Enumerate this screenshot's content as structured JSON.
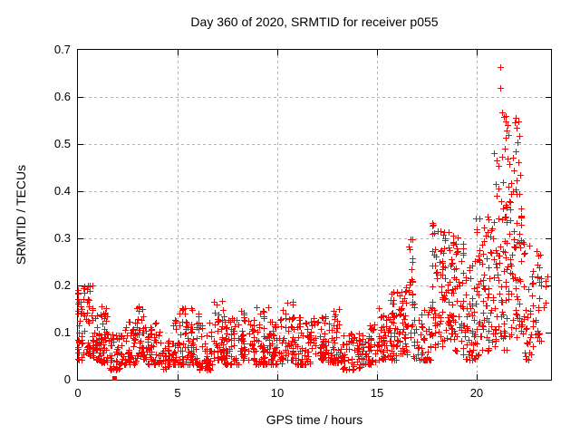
{
  "figure": {
    "title": "Day 360 of 2020, SRMTID for receiver p055"
  },
  "colors": {
    "marker": "#ff0000",
    "grid": "#b4b4b4",
    "frame": "#000000",
    "background": "#ffffff",
    "text": "#000000"
  },
  "chart_data": {
    "type": "scatter",
    "title": "Day 360 of 2020, SRMTID for receiver p055",
    "xlabel": "GPS time / hours",
    "ylabel": "SRMTID / TECUs",
    "xlim": [
      0,
      23.73
    ],
    "ylim": [
      0,
      0.7
    ],
    "x_ticks": [
      0,
      5,
      10,
      15,
      20
    ],
    "x_tick_labels": [
      "0",
      "5",
      "10",
      "15",
      "20"
    ],
    "y_ticks": [
      0,
      0.1,
      0.2,
      0.3,
      0.4,
      0.5,
      0.6,
      0.7
    ],
    "y_tick_labels": [
      "0",
      "0.1",
      "0.2",
      "0.3",
      "0.4",
      "0.5",
      "0.6",
      "0.7"
    ],
    "grid": true,
    "legend": "none",
    "marker": {
      "symbol": "plus",
      "color": "#ff0000",
      "size": 7
    },
    "series_name": "SRMTID",
    "scatter_profile_format": "bins of [x_start_hr, x_end_hr, point_count, y_min_TECU, y_max_TECU, low_bias_exponent] estimated from the plotted point cloud",
    "scatter_profile": {
      "bins": [
        [
          0.0,
          0.3,
          32,
          0.04,
          0.19,
          1.6
        ],
        [
          0.3,
          0.8,
          55,
          0.05,
          0.2,
          1.7
        ],
        [
          0.8,
          1.15,
          35,
          0.04,
          0.135,
          1.8
        ],
        [
          1.15,
          1.6,
          45,
          0.035,
          0.155,
          1.8
        ],
        [
          1.6,
          2.2,
          45,
          0.02,
          0.095,
          1.6
        ],
        [
          2.2,
          3.0,
          55,
          0.03,
          0.125,
          1.8
        ],
        [
          3.0,
          3.5,
          40,
          0.04,
          0.155,
          1.8
        ],
        [
          3.5,
          4.2,
          50,
          0.03,
          0.12,
          1.8
        ],
        [
          4.2,
          4.65,
          30,
          0.02,
          0.095,
          1.6
        ],
        [
          4.65,
          5.4,
          55,
          0.03,
          0.15,
          2.0
        ],
        [
          5.4,
          6.1,
          55,
          0.03,
          0.155,
          1.9
        ],
        [
          6.1,
          6.8,
          50,
          0.02,
          0.12,
          1.8
        ],
        [
          6.8,
          7.4,
          50,
          0.04,
          0.168,
          1.9
        ],
        [
          7.4,
          8.2,
          55,
          0.03,
          0.13,
          1.8
        ],
        [
          8.2,
          8.9,
          50,
          0.04,
          0.145,
          1.8
        ],
        [
          8.9,
          9.6,
          50,
          0.03,
          0.156,
          1.9
        ],
        [
          9.6,
          10.3,
          50,
          0.03,
          0.13,
          1.8
        ],
        [
          10.3,
          10.9,
          45,
          0.04,
          0.168,
          1.9
        ],
        [
          10.9,
          11.8,
          60,
          0.03,
          0.14,
          1.9
        ],
        [
          11.8,
          12.6,
          55,
          0.04,
          0.135,
          1.8
        ],
        [
          12.6,
          13.3,
          50,
          0.035,
          0.15,
          1.8
        ],
        [
          13.3,
          14.2,
          55,
          0.02,
          0.1,
          1.6
        ],
        [
          14.2,
          15.1,
          55,
          0.03,
          0.115,
          1.7
        ],
        [
          15.1,
          15.7,
          45,
          0.04,
          0.15,
          1.7
        ],
        [
          15.7,
          16.2,
          45,
          0.04,
          0.19,
          1.7
        ],
        [
          16.2,
          16.6,
          35,
          0.05,
          0.2,
          1.7
        ],
        [
          16.6,
          16.85,
          25,
          0.08,
          0.3,
          1.1
        ],
        [
          16.85,
          17.8,
          55,
          0.04,
          0.17,
          1.8
        ],
        [
          17.8,
          18.35,
          55,
          0.06,
          0.335,
          1.1
        ],
        [
          18.35,
          18.9,
          55,
          0.08,
          0.32,
          1.0
        ],
        [
          18.9,
          19.5,
          45,
          0.05,
          0.3,
          1.4
        ],
        [
          19.5,
          20.0,
          40,
          0.04,
          0.25,
          1.5
        ],
        [
          20.0,
          20.5,
          42,
          0.05,
          0.355,
          1.4
        ],
        [
          20.5,
          21.0,
          45,
          0.06,
          0.36,
          1.3
        ],
        [
          21.0,
          21.6,
          52,
          0.06,
          0.4,
          1.2
        ],
        [
          21.6,
          22.3,
          62,
          0.08,
          0.42,
          1.2
        ],
        [
          22.3,
          22.9,
          40,
          0.04,
          0.3,
          1.4
        ],
        [
          22.9,
          23.7,
          24,
          0.08,
          0.28,
          1.4
        ]
      ]
    },
    "outlier_points": [
      [
        21.23,
        0.662
      ],
      [
        21.23,
        0.617
      ],
      [
        21.33,
        0.566
      ],
      [
        21.42,
        0.556
      ],
      [
        21.48,
        0.546
      ],
      [
        21.52,
        0.558
      ],
      [
        21.56,
        0.527
      ],
      [
        21.6,
        0.538
      ],
      [
        21.5,
        0.512
      ],
      [
        21.64,
        0.518
      ],
      [
        21.95,
        0.545
      ],
      [
        22.02,
        0.553
      ],
      [
        22.06,
        0.532
      ],
      [
        22.12,
        0.546
      ],
      [
        22.18,
        0.516
      ],
      [
        22.1,
        0.502
      ],
      [
        20.93,
        0.478
      ],
      [
        21.05,
        0.464
      ],
      [
        21.15,
        0.452
      ],
      [
        21.3,
        0.472
      ],
      [
        21.45,
        0.488
      ],
      [
        21.58,
        0.468
      ],
      [
        21.7,
        0.455
      ],
      [
        21.85,
        0.47
      ],
      [
        21.92,
        0.442
      ],
      [
        22.0,
        0.482
      ],
      [
        22.15,
        0.46
      ],
      [
        22.24,
        0.432
      ],
      [
        20.98,
        0.414
      ],
      [
        21.12,
        0.404
      ],
      [
        21.38,
        0.418
      ],
      [
        21.62,
        0.408
      ],
      [
        21.88,
        0.398
      ],
      [
        22.05,
        0.422
      ],
      [
        22.2,
        0.392
      ],
      [
        23.05,
        0.272
      ],
      [
        23.2,
        0.205
      ],
      [
        23.28,
        0.198
      ],
      [
        23.4,
        0.152
      ]
    ],
    "square_point": [
      1.85,
      0.002
    ]
  }
}
